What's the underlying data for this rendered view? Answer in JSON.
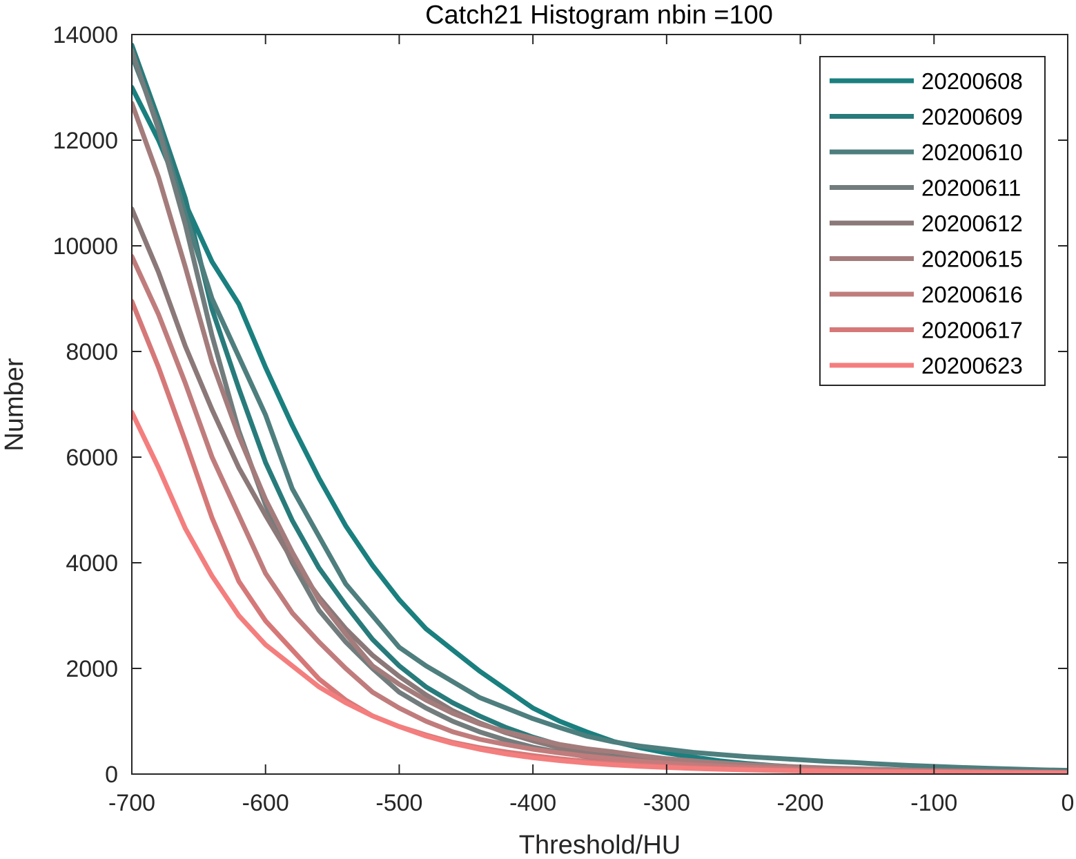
{
  "chart_data": {
    "type": "line",
    "title": "Catch21  Histogram nbin =100",
    "xlabel": "Threshold/HU",
    "ylabel": "Number",
    "xlim": [
      -700,
      0
    ],
    "ylim": [
      0,
      14000
    ],
    "xticks": [
      -700,
      -600,
      -500,
      -400,
      -300,
      -200,
      -100,
      0
    ],
    "yticks": [
      0,
      2000,
      4000,
      6000,
      8000,
      10000,
      12000,
      14000
    ],
    "grid": false,
    "legend_position": "top-right",
    "series": [
      {
        "name": "20200608",
        "color": "#1a7f7f",
        "x": [
          -700,
          -680,
          -660,
          -640,
          -620,
          -600,
          -580,
          -560,
          -540,
          -520,
          -500,
          -480,
          -460,
          -440,
          -420,
          -400,
          -380,
          -360,
          -340,
          -320,
          -300,
          -280,
          -260,
          -240,
          -220,
          -200,
          -180,
          -160,
          -140,
          -120,
          -100,
          -80,
          -60,
          -40,
          -20,
          0
        ],
        "y": [
          13000,
          12000,
          10800,
          9700,
          8900,
          7700,
          6600,
          5600,
          4700,
          3950,
          3300,
          2750,
          2350,
          1950,
          1600,
          1250,
          1000,
          800,
          620,
          500,
          400,
          320,
          250,
          200,
          160,
          130,
          110,
          90,
          75,
          60,
          50,
          45,
          40,
          35,
          30,
          25
        ]
      },
      {
        "name": "20200609",
        "color": "#287b7b",
        "x": [
          -700,
          -680,
          -660,
          -640,
          -620,
          -600,
          -580,
          -560,
          -540,
          -520,
          -500,
          -480,
          -460,
          -440,
          -420,
          -400,
          -380,
          -360,
          -340,
          -320,
          -300,
          -280,
          -260,
          -240,
          -220,
          -200,
          -180,
          -160,
          -140,
          -120,
          -100,
          -80,
          -60,
          -40,
          -20,
          0
        ],
        "y": [
          13800,
          12400,
          10900,
          8800,
          7300,
          5900,
          4800,
          3900,
          3200,
          2550,
          2050,
          1650,
          1350,
          1100,
          880,
          700,
          550,
          440,
          350,
          280,
          220,
          180,
          145,
          115,
          95,
          80,
          65,
          55,
          45,
          40,
          35,
          30,
          25,
          22,
          20,
          18
        ]
      },
      {
        "name": "20200610",
        "color": "#4e7e7e",
        "x": [
          -700,
          -680,
          -660,
          -640,
          -620,
          -600,
          -580,
          -560,
          -540,
          -520,
          -500,
          -480,
          -460,
          -440,
          -420,
          -400,
          -380,
          -360,
          -340,
          -320,
          -300,
          -280,
          -260,
          -240,
          -220,
          -200,
          -180,
          -160,
          -140,
          -120,
          -100,
          -80,
          -60,
          -40,
          -20,
          0
        ],
        "y": [
          13600,
          12300,
          10600,
          9000,
          7900,
          6800,
          5400,
          4500,
          3600,
          3000,
          2400,
          2050,
          1750,
          1450,
          1250,
          1050,
          880,
          720,
          610,
          530,
          470,
          410,
          370,
          330,
          300,
          270,
          240,
          220,
          190,
          165,
          145,
          125,
          110,
          95,
          80,
          70
        ]
      },
      {
        "name": "20200611",
        "color": "#727c7c",
        "x": [
          -700,
          -680,
          -660,
          -640,
          -620,
          -600,
          -580,
          -560,
          -540,
          -520,
          -500,
          -480,
          -460,
          -440,
          -420,
          -400,
          -380,
          -360,
          -340,
          -320,
          -300,
          -280,
          -260,
          -240,
          -220,
          -200,
          -180,
          -160,
          -140,
          -120,
          -100,
          -80,
          -60,
          -40,
          -20,
          0
        ],
        "y": [
          13700,
          12200,
          10400,
          8300,
          6500,
          5100,
          4000,
          3100,
          2500,
          2000,
          1550,
          1250,
          1000,
          800,
          640,
          510,
          410,
          330,
          270,
          220,
          180,
          150,
          125,
          105,
          90,
          75,
          65,
          55,
          48,
          42,
          36,
          32,
          28,
          25,
          22,
          20
        ]
      },
      {
        "name": "20200612",
        "color": "#8b7878",
        "x": [
          -700,
          -680,
          -660,
          -640,
          -620,
          -600,
          -580,
          -560,
          -540,
          -520,
          -500,
          -480,
          -460,
          -440,
          -420,
          -400,
          -380,
          -360,
          -340,
          -320,
          -300,
          -280,
          -260,
          -240,
          -220,
          -200,
          -180,
          -160,
          -140,
          -120,
          -100,
          -80,
          -60,
          -40,
          -20,
          0
        ],
        "y": [
          10700,
          9500,
          8100,
          6900,
          5800,
          4900,
          4050,
          3350,
          2750,
          2250,
          1850,
          1500,
          1200,
          970,
          780,
          630,
          500,
          400,
          320,
          260,
          210,
          170,
          140,
          115,
          95,
          80,
          68,
          58,
          50,
          43,
          38,
          33,
          29,
          26,
          23,
          20
        ]
      },
      {
        "name": "20200615",
        "color": "#a47c7c",
        "x": [
          -700,
          -680,
          -660,
          -640,
          -620,
          -600,
          -580,
          -560,
          -540,
          -520,
          -500,
          -480,
          -460,
          -440,
          -420,
          -400,
          -380,
          -360,
          -340,
          -320,
          -300,
          -280,
          -260,
          -240,
          -220,
          -200,
          -180,
          -160,
          -140,
          -120,
          -100,
          -80,
          -60,
          -40,
          -20,
          0
        ],
        "y": [
          12700,
          11300,
          9600,
          7800,
          6400,
          5200,
          4200,
          3300,
          2650,
          2050,
          1700,
          1400,
          1150,
          950,
          800,
          680,
          560,
          480,
          420,
          350,
          290,
          250,
          210,
          180,
          155,
          135,
          115,
          100,
          88,
          76,
          66,
          58,
          50,
          44,
          38,
          33
        ]
      },
      {
        "name": "20200616",
        "color": "#c07c7c",
        "x": [
          -700,
          -680,
          -660,
          -640,
          -620,
          -600,
          -580,
          -560,
          -540,
          -520,
          -500,
          -480,
          -460,
          -440,
          -420,
          -400,
          -380,
          -360,
          -340,
          -320,
          -300,
          -280,
          -260,
          -240,
          -220,
          -200,
          -180,
          -160,
          -140,
          -120,
          -100,
          -80,
          -60,
          -40,
          -20,
          0
        ],
        "y": [
          9800,
          8700,
          7400,
          6000,
          4900,
          3800,
          3050,
          2500,
          2000,
          1550,
          1250,
          1000,
          800,
          660,
          560,
          470,
          400,
          340,
          290,
          245,
          205,
          175,
          150,
          128,
          110,
          95,
          82,
          72,
          63,
          55,
          48,
          42,
          37,
          33,
          29,
          26
        ]
      },
      {
        "name": "20200617",
        "color": "#d67878",
        "x": [
          -700,
          -680,
          -660,
          -640,
          -620,
          -600,
          -580,
          -560,
          -540,
          -520,
          -500,
          -480,
          -460,
          -440,
          -420,
          -400,
          -380,
          -360,
          -340,
          -320,
          -300,
          -280,
          -260,
          -240,
          -220,
          -200,
          -180,
          -160,
          -140,
          -120,
          -100,
          -80,
          -60,
          -40,
          -20,
          0
        ],
        "y": [
          8950,
          7700,
          6300,
          4850,
          3650,
          2900,
          2350,
          1800,
          1400,
          1100,
          900,
          740,
          600,
          500,
          420,
          350,
          290,
          240,
          200,
          170,
          145,
          125,
          108,
          94,
          82,
          72,
          63,
          56,
          50,
          44,
          39,
          35,
          31,
          28,
          25,
          22
        ]
      },
      {
        "name": "20200623",
        "color": "#f47e7e",
        "x": [
          -700,
          -680,
          -660,
          -640,
          -620,
          -600,
          -580,
          -560,
          -540,
          -520,
          -500,
          -480,
          -460,
          -440,
          -420,
          -400,
          -380,
          -360,
          -340,
          -320,
          -300,
          -280,
          -260,
          -240,
          -220,
          -200,
          -180,
          -160,
          -140,
          -120,
          -100,
          -80,
          -60,
          -40,
          -20,
          0
        ],
        "y": [
          6850,
          5800,
          4650,
          3750,
          3000,
          2450,
          2050,
          1650,
          1350,
          1100,
          900,
          720,
          580,
          470,
          380,
          310,
          255,
          210,
          175,
          148,
          125,
          106,
          91,
          79,
          69,
          60,
          53,
          47,
          42,
          38,
          34,
          30,
          27,
          24,
          22,
          20
        ]
      }
    ]
  }
}
